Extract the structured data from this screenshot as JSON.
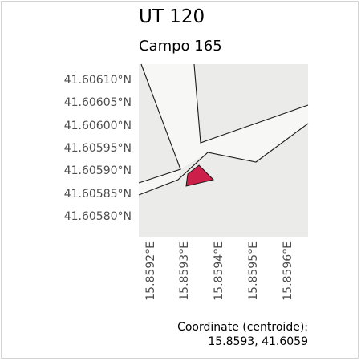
{
  "title": "UT 120",
  "subtitle": "Campo 165",
  "map": {
    "background_color": "#ebebe9",
    "road_color": "#f7f7f5",
    "line_color": "#1a1a1a",
    "parcel_color": "#cc1f4a",
    "lat_ticks": [
      {
        "value": 41.6061,
        "label": "41.60610°N"
      },
      {
        "value": 41.60605,
        "label": "41.60605°N"
      },
      {
        "value": 41.606,
        "label": "41.60600°N"
      },
      {
        "value": 41.60595,
        "label": "41.60595°N"
      },
      {
        "value": 41.6059,
        "label": "41.60590°N"
      },
      {
        "value": 41.60585,
        "label": "41.60585°N"
      },
      {
        "value": 41.6058,
        "label": "41.60580°N"
      }
    ],
    "lon_ticks": [
      {
        "value": 15.8592,
        "label": "15.8592°E"
      },
      {
        "value": 15.8593,
        "label": "15.8593°E"
      },
      {
        "value": 15.8594,
        "label": "15.8594°E"
      },
      {
        "value": 15.8595,
        "label": "15.8595°E"
      },
      {
        "value": 15.8596,
        "label": "15.8596°E"
      }
    ]
  },
  "caption": {
    "line1": "Coordinate (centroide):",
    "line2": "15.8593, 41.6059"
  }
}
